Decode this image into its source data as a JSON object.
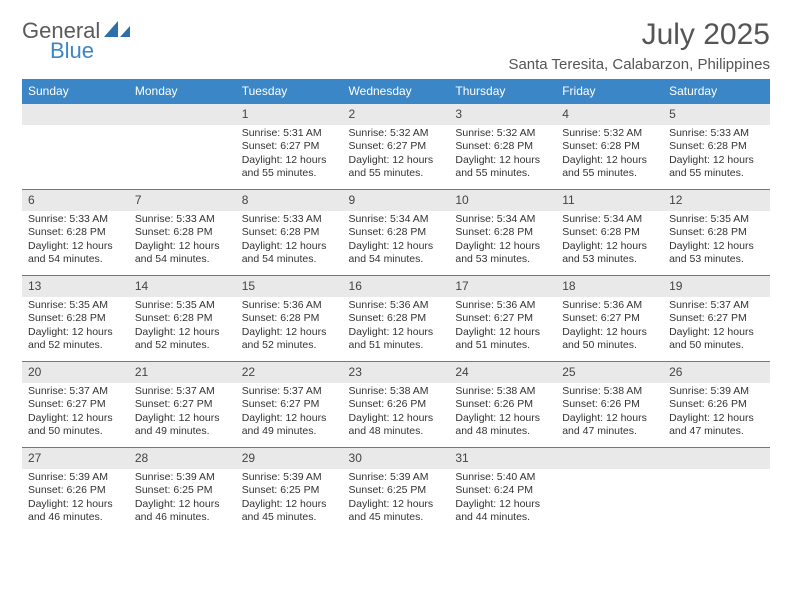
{
  "brand": {
    "word1": "General",
    "word2": "Blue",
    "color_general": "#5a5a5a",
    "color_blue": "#3b86c6"
  },
  "title": "July 2025",
  "location": "Santa Teresita, Calabarzon, Philippines",
  "colors": {
    "header_bg": "#3b86c6",
    "header_text": "#ffffff",
    "numrow_bg": "#e9e9e9",
    "week_border": "#3b86c6",
    "body_text": "#333333"
  },
  "weekdays": [
    "Sunday",
    "Monday",
    "Tuesday",
    "Wednesday",
    "Thursday",
    "Friday",
    "Saturday"
  ],
  "weeks": [
    [
      {
        "day": "",
        "sunrise": "",
        "sunset": "",
        "daylight": ""
      },
      {
        "day": "",
        "sunrise": "",
        "sunset": "",
        "daylight": ""
      },
      {
        "day": "1",
        "sunrise": "Sunrise: 5:31 AM",
        "sunset": "Sunset: 6:27 PM",
        "daylight": "Daylight: 12 hours and 55 minutes."
      },
      {
        "day": "2",
        "sunrise": "Sunrise: 5:32 AM",
        "sunset": "Sunset: 6:27 PM",
        "daylight": "Daylight: 12 hours and 55 minutes."
      },
      {
        "day": "3",
        "sunrise": "Sunrise: 5:32 AM",
        "sunset": "Sunset: 6:28 PM",
        "daylight": "Daylight: 12 hours and 55 minutes."
      },
      {
        "day": "4",
        "sunrise": "Sunrise: 5:32 AM",
        "sunset": "Sunset: 6:28 PM",
        "daylight": "Daylight: 12 hours and 55 minutes."
      },
      {
        "day": "5",
        "sunrise": "Sunrise: 5:33 AM",
        "sunset": "Sunset: 6:28 PM",
        "daylight": "Daylight: 12 hours and 55 minutes."
      }
    ],
    [
      {
        "day": "6",
        "sunrise": "Sunrise: 5:33 AM",
        "sunset": "Sunset: 6:28 PM",
        "daylight": "Daylight: 12 hours and 54 minutes."
      },
      {
        "day": "7",
        "sunrise": "Sunrise: 5:33 AM",
        "sunset": "Sunset: 6:28 PM",
        "daylight": "Daylight: 12 hours and 54 minutes."
      },
      {
        "day": "8",
        "sunrise": "Sunrise: 5:33 AM",
        "sunset": "Sunset: 6:28 PM",
        "daylight": "Daylight: 12 hours and 54 minutes."
      },
      {
        "day": "9",
        "sunrise": "Sunrise: 5:34 AM",
        "sunset": "Sunset: 6:28 PM",
        "daylight": "Daylight: 12 hours and 54 minutes."
      },
      {
        "day": "10",
        "sunrise": "Sunrise: 5:34 AM",
        "sunset": "Sunset: 6:28 PM",
        "daylight": "Daylight: 12 hours and 53 minutes."
      },
      {
        "day": "11",
        "sunrise": "Sunrise: 5:34 AM",
        "sunset": "Sunset: 6:28 PM",
        "daylight": "Daylight: 12 hours and 53 minutes."
      },
      {
        "day": "12",
        "sunrise": "Sunrise: 5:35 AM",
        "sunset": "Sunset: 6:28 PM",
        "daylight": "Daylight: 12 hours and 53 minutes."
      }
    ],
    [
      {
        "day": "13",
        "sunrise": "Sunrise: 5:35 AM",
        "sunset": "Sunset: 6:28 PM",
        "daylight": "Daylight: 12 hours and 52 minutes."
      },
      {
        "day": "14",
        "sunrise": "Sunrise: 5:35 AM",
        "sunset": "Sunset: 6:28 PM",
        "daylight": "Daylight: 12 hours and 52 minutes."
      },
      {
        "day": "15",
        "sunrise": "Sunrise: 5:36 AM",
        "sunset": "Sunset: 6:28 PM",
        "daylight": "Daylight: 12 hours and 52 minutes."
      },
      {
        "day": "16",
        "sunrise": "Sunrise: 5:36 AM",
        "sunset": "Sunset: 6:28 PM",
        "daylight": "Daylight: 12 hours and 51 minutes."
      },
      {
        "day": "17",
        "sunrise": "Sunrise: 5:36 AM",
        "sunset": "Sunset: 6:27 PM",
        "daylight": "Daylight: 12 hours and 51 minutes."
      },
      {
        "day": "18",
        "sunrise": "Sunrise: 5:36 AM",
        "sunset": "Sunset: 6:27 PM",
        "daylight": "Daylight: 12 hours and 50 minutes."
      },
      {
        "day": "19",
        "sunrise": "Sunrise: 5:37 AM",
        "sunset": "Sunset: 6:27 PM",
        "daylight": "Daylight: 12 hours and 50 minutes."
      }
    ],
    [
      {
        "day": "20",
        "sunrise": "Sunrise: 5:37 AM",
        "sunset": "Sunset: 6:27 PM",
        "daylight": "Daylight: 12 hours and 50 minutes."
      },
      {
        "day": "21",
        "sunrise": "Sunrise: 5:37 AM",
        "sunset": "Sunset: 6:27 PM",
        "daylight": "Daylight: 12 hours and 49 minutes."
      },
      {
        "day": "22",
        "sunrise": "Sunrise: 5:37 AM",
        "sunset": "Sunset: 6:27 PM",
        "daylight": "Daylight: 12 hours and 49 minutes."
      },
      {
        "day": "23",
        "sunrise": "Sunrise: 5:38 AM",
        "sunset": "Sunset: 6:26 PM",
        "daylight": "Daylight: 12 hours and 48 minutes."
      },
      {
        "day": "24",
        "sunrise": "Sunrise: 5:38 AM",
        "sunset": "Sunset: 6:26 PM",
        "daylight": "Daylight: 12 hours and 48 minutes."
      },
      {
        "day": "25",
        "sunrise": "Sunrise: 5:38 AM",
        "sunset": "Sunset: 6:26 PM",
        "daylight": "Daylight: 12 hours and 47 minutes."
      },
      {
        "day": "26",
        "sunrise": "Sunrise: 5:39 AM",
        "sunset": "Sunset: 6:26 PM",
        "daylight": "Daylight: 12 hours and 47 minutes."
      }
    ],
    [
      {
        "day": "27",
        "sunrise": "Sunrise: 5:39 AM",
        "sunset": "Sunset: 6:26 PM",
        "daylight": "Daylight: 12 hours and 46 minutes."
      },
      {
        "day": "28",
        "sunrise": "Sunrise: 5:39 AM",
        "sunset": "Sunset: 6:25 PM",
        "daylight": "Daylight: 12 hours and 46 minutes."
      },
      {
        "day": "29",
        "sunrise": "Sunrise: 5:39 AM",
        "sunset": "Sunset: 6:25 PM",
        "daylight": "Daylight: 12 hours and 45 minutes."
      },
      {
        "day": "30",
        "sunrise": "Sunrise: 5:39 AM",
        "sunset": "Sunset: 6:25 PM",
        "daylight": "Daylight: 12 hours and 45 minutes."
      },
      {
        "day": "31",
        "sunrise": "Sunrise: 5:40 AM",
        "sunset": "Sunset: 6:24 PM",
        "daylight": "Daylight: 12 hours and 44 minutes."
      },
      {
        "day": "",
        "sunrise": "",
        "sunset": "",
        "daylight": ""
      },
      {
        "day": "",
        "sunrise": "",
        "sunset": "",
        "daylight": ""
      }
    ]
  ]
}
